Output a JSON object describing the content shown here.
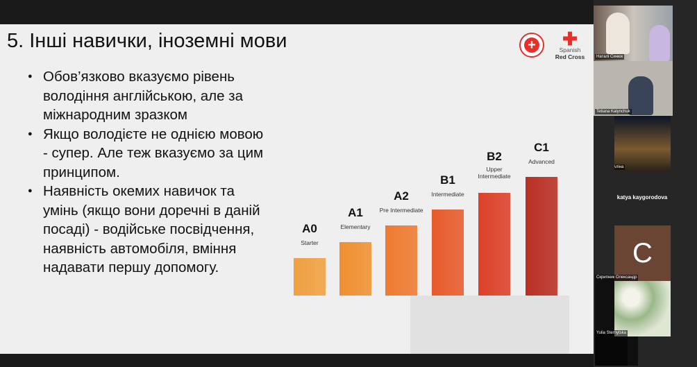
{
  "slide": {
    "title": "5. Інші навички, іноземні мови",
    "bullets": [
      "Обов’язково вказуємо рівень володіння англійською, але за міжнародним зразком",
      "Якщо володієте не однією мовою - супер. Але теж вказуємо за цим принципом.",
      "Наявність окемих навичок та умінь (якщо вони доречні в даній посаді) - водійське посвідчення, наявність автомобіля, вміння надавати першу допомогу."
    ],
    "logo": {
      "line1": "Spanish",
      "line2": "Red Cross",
      "color": "#e8302a"
    },
    "levels": [
      {
        "code": "A0",
        "name": "Starter",
        "rank": 1,
        "color": "#f0a040"
      },
      {
        "code": "A1",
        "name": "Elementary",
        "rank": 2,
        "color": "#f09030"
      },
      {
        "code": "A2",
        "name": "Pre Intermediate",
        "rank": 3,
        "color": "#ee7a30"
      },
      {
        "code": "B1",
        "name": "Intermediate",
        "rank": 4,
        "color": "#e85a2c"
      },
      {
        "code": "B2",
        "name": "Upper Intermediate",
        "rank": 5,
        "color": "#dc4028"
      },
      {
        "code": "C1",
        "name": "Advanced",
        "rank": 6,
        "color": "#b92e22"
      }
    ]
  },
  "participants": [
    {
      "name": "Наталi Синюк"
    },
    {
      "name": "Tetiana Kalynchuk"
    },
    {
      "name": "Устнова Аліна"
    },
    {
      "name": "katya kaygorodova"
    },
    {
      "name": "Скрипник Олександр",
      "initial": "C"
    },
    {
      "name": "Yulia Sternytska"
    }
  ]
}
